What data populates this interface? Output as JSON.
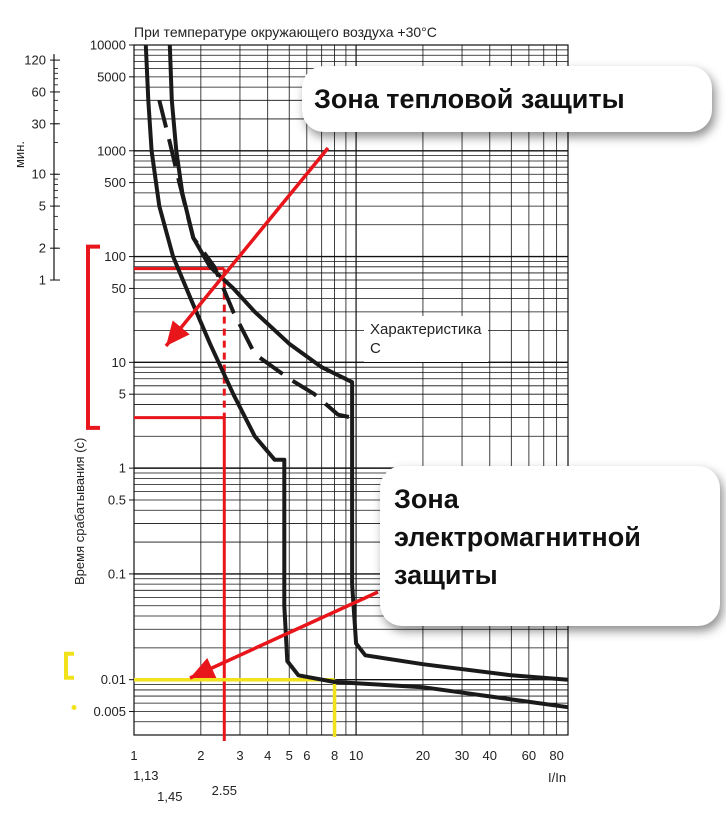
{
  "chart_data": {
    "type": "line",
    "subtitle": "При температуре окружающего воздуха +30°С",
    "xlabel": "I/In",
    "ylabel": "Время срабатывания (с)",
    "ylabel_minutes": "мин.",
    "xscale": "log",
    "yscale": "log",
    "xlim": [
      1,
      90
    ],
    "ylim": [
      0.003,
      10000
    ],
    "x_ticks": [
      1,
      2,
      3,
      4,
      5,
      6,
      8,
      10,
      20,
      30,
      40,
      60,
      80
    ],
    "x_ticks_extra": [
      {
        "value": 1.13,
        "label": "1,13"
      },
      {
        "value": 1.45,
        "label": "1,45"
      },
      {
        "value": 2.55,
        "label": "2.55"
      }
    ],
    "y_ticks_seconds": [
      {
        "value": 10000,
        "label": "10000"
      },
      {
        "value": 5000,
        "label": "5000"
      },
      {
        "value": 1000,
        "label": "1000"
      },
      {
        "value": 500,
        "label": "500"
      },
      {
        "value": 100,
        "label": "100"
      },
      {
        "value": 50,
        "label": "50"
      },
      {
        "value": 10,
        "label": "10"
      },
      {
        "value": 5,
        "label": "5"
      },
      {
        "value": 1,
        "label": "1"
      },
      {
        "value": 0.5,
        "label": "0.5"
      },
      {
        "value": 0.1,
        "label": "0.1"
      },
      {
        "value": 0.01,
        "label": "0.01"
      },
      {
        "value": 0.005,
        "label": "0.005"
      }
    ],
    "y_ticks_minutes": [
      {
        "value": 120,
        "label": "120"
      },
      {
        "value": 60,
        "label": "60"
      },
      {
        "value": 30,
        "label": "30"
      },
      {
        "value": 10,
        "label": "10"
      },
      {
        "value": 5,
        "label": "5"
      },
      {
        "value": 2,
        "label": "2"
      },
      {
        "value": 1,
        "label": "1"
      }
    ],
    "series": [
      {
        "style": "solid",
        "color": "#1a1a1a",
        "points": [
          [
            1.13,
            10000
          ],
          [
            1.16,
            3000
          ],
          [
            1.2,
            1000
          ],
          [
            1.3,
            300
          ],
          [
            1.5,
            100
          ],
          [
            1.8,
            40
          ],
          [
            2.2,
            15
          ],
          [
            2.8,
            5
          ],
          [
            3.5,
            2
          ],
          [
            4.3,
            1.2
          ],
          [
            4.75,
            1.2
          ],
          [
            4.75,
            0.05
          ],
          [
            4.9,
            0.015
          ],
          [
            5.5,
            0.011
          ],
          [
            8,
            0.0095
          ],
          [
            20,
            0.0085
          ],
          [
            90,
            0.0055
          ]
        ]
      },
      {
        "style": "solid",
        "color": "#1a1a1a",
        "points": [
          [
            1.45,
            10000
          ],
          [
            1.48,
            3000
          ],
          [
            1.55,
            1000
          ],
          [
            1.65,
            400
          ],
          [
            1.85,
            150
          ],
          [
            2.2,
            80
          ],
          [
            2.8,
            50
          ],
          [
            3.5,
            30
          ],
          [
            5,
            15
          ],
          [
            7,
            9
          ],
          [
            9.6,
            6.5
          ],
          [
            9.6,
            0.08
          ],
          [
            10,
            0.022
          ],
          [
            11,
            0.017
          ],
          [
            20,
            0.014
          ],
          [
            50,
            0.011
          ],
          [
            90,
            0.01
          ]
        ]
      },
      {
        "style": "dashed",
        "color": "#1a1a1a",
        "points": [
          [
            1.3,
            3000
          ],
          [
            1.45,
            1200
          ],
          [
            1.6,
            500
          ],
          [
            1.85,
            150
          ],
          [
            2.3,
            80
          ],
          [
            2.8,
            30
          ],
          [
            3.5,
            12
          ],
          [
            5,
            7
          ],
          [
            6.5,
            5
          ],
          [
            8.3,
            3.2
          ],
          [
            9.6,
            3
          ]
        ]
      }
    ],
    "reference_lines": {
      "color_red": "#e8161b",
      "color_yellow": "#f2e21c",
      "red_vertical_x": 2.55,
      "red_horizontal_top_y": 77,
      "red_horizontal_bottom_y": 3,
      "yellow_horizontal_y": 0.01,
      "yellow_vertical_x": 8
    },
    "grid": true
  },
  "annotations": {
    "thermal_zone": "Зона тепловой защиты",
    "em_zone_line1": "Зона",
    "em_zone_line2": "электромагнитной",
    "em_zone_line3": "защиты",
    "characteristic_line1": "Характеристика",
    "characteristic_line2": "С"
  }
}
